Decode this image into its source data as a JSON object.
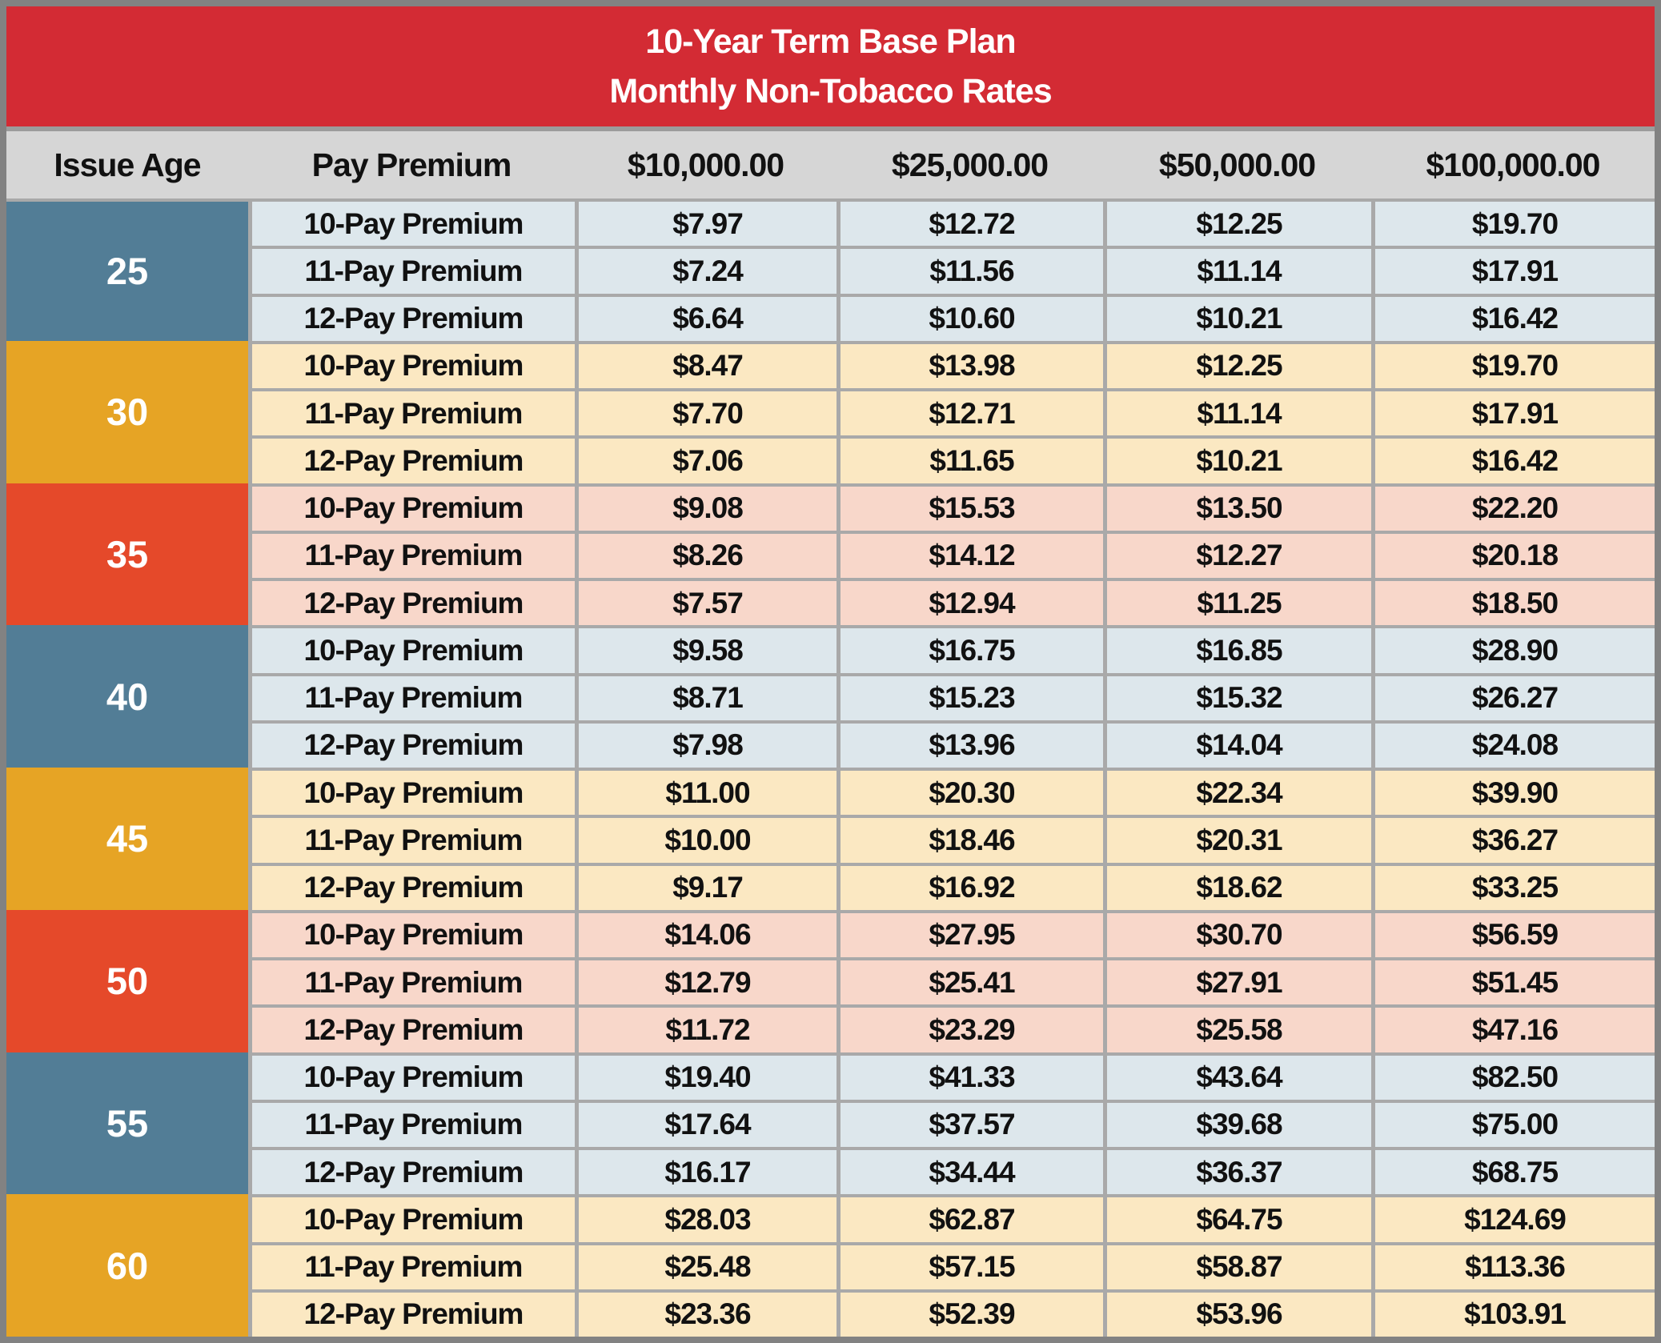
{
  "title": {
    "line1": "10-Year Term Base Plan",
    "line2": "Monthly Non-Tobacco Rates"
  },
  "columns": [
    "Issue Age",
    "Pay Premium",
    "$10,000.00",
    "$25,000.00",
    "$50,000.00",
    "$100,000.00"
  ],
  "row_labels": [
    "10-Pay Premium",
    "11-Pay Premium",
    "12-Pay Premium"
  ],
  "age_groups": [
    {
      "age": "25",
      "theme": "blue",
      "rows": [
        [
          "$7.97",
          "$12.72",
          "$12.25",
          "$19.70"
        ],
        [
          "$7.24",
          "$11.56",
          "$11.14",
          "$17.91"
        ],
        [
          "$6.64",
          "$10.60",
          "$10.21",
          "$16.42"
        ]
      ]
    },
    {
      "age": "30",
      "theme": "orange",
      "rows": [
        [
          "$8.47",
          "$13.98",
          "$12.25",
          "$19.70"
        ],
        [
          "$7.70",
          "$12.71",
          "$11.14",
          "$17.91"
        ],
        [
          "$7.06",
          "$11.65",
          "$10.21",
          "$16.42"
        ]
      ]
    },
    {
      "age": "35",
      "theme": "red",
      "rows": [
        [
          "$9.08",
          "$15.53",
          "$13.50",
          "$22.20"
        ],
        [
          "$8.26",
          "$14.12",
          "$12.27",
          "$20.18"
        ],
        [
          "$7.57",
          "$12.94",
          "$11.25",
          "$18.50"
        ]
      ]
    },
    {
      "age": "40",
      "theme": "blue",
      "rows": [
        [
          "$9.58",
          "$16.75",
          "$16.85",
          "$28.90"
        ],
        [
          "$8.71",
          "$15.23",
          "$15.32",
          "$26.27"
        ],
        [
          "$7.98",
          "$13.96",
          "$14.04",
          "$24.08"
        ]
      ]
    },
    {
      "age": "45",
      "theme": "orange",
      "rows": [
        [
          "$11.00",
          "$20.30",
          "$22.34",
          "$39.90"
        ],
        [
          "$10.00",
          "$18.46",
          "$20.31",
          "$36.27"
        ],
        [
          "$9.17",
          "$16.92",
          "$18.62",
          "$33.25"
        ]
      ]
    },
    {
      "age": "50",
      "theme": "red",
      "rows": [
        [
          "$14.06",
          "$27.95",
          "$30.70",
          "$56.59"
        ],
        [
          "$12.79",
          "$25.41",
          "$27.91",
          "$51.45"
        ],
        [
          "$11.72",
          "$23.29",
          "$25.58",
          "$47.16"
        ]
      ]
    },
    {
      "age": "55",
      "theme": "blue",
      "rows": [
        [
          "$19.40",
          "$41.33",
          "$43.64",
          "$82.50"
        ],
        [
          "$17.64",
          "$37.57",
          "$39.68",
          "$75.00"
        ],
        [
          "$16.17",
          "$34.44",
          "$36.37",
          "$68.75"
        ]
      ]
    },
    {
      "age": "60",
      "theme": "orange",
      "rows": [
        [
          "$28.03",
          "$62.87",
          "$64.75",
          "$124.69"
        ],
        [
          "$25.48",
          "$57.15",
          "$58.87",
          "$113.36"
        ],
        [
          "$23.36",
          "$52.39",
          "$53.96",
          "$103.91"
        ]
      ]
    }
  ],
  "colors": {
    "header_red": "#d32b34",
    "age_blue": "#527d96",
    "age_orange": "#e6a425",
    "age_red": "#e5492a",
    "row_blue_light": "#dde7ec",
    "row_orange_light": "#fbe8c2",
    "row_red_light": "#f8d7ca",
    "band_gray": "#d6d6d6",
    "line_gray": "#a9a9a9",
    "frame_gray": "#828282"
  }
}
